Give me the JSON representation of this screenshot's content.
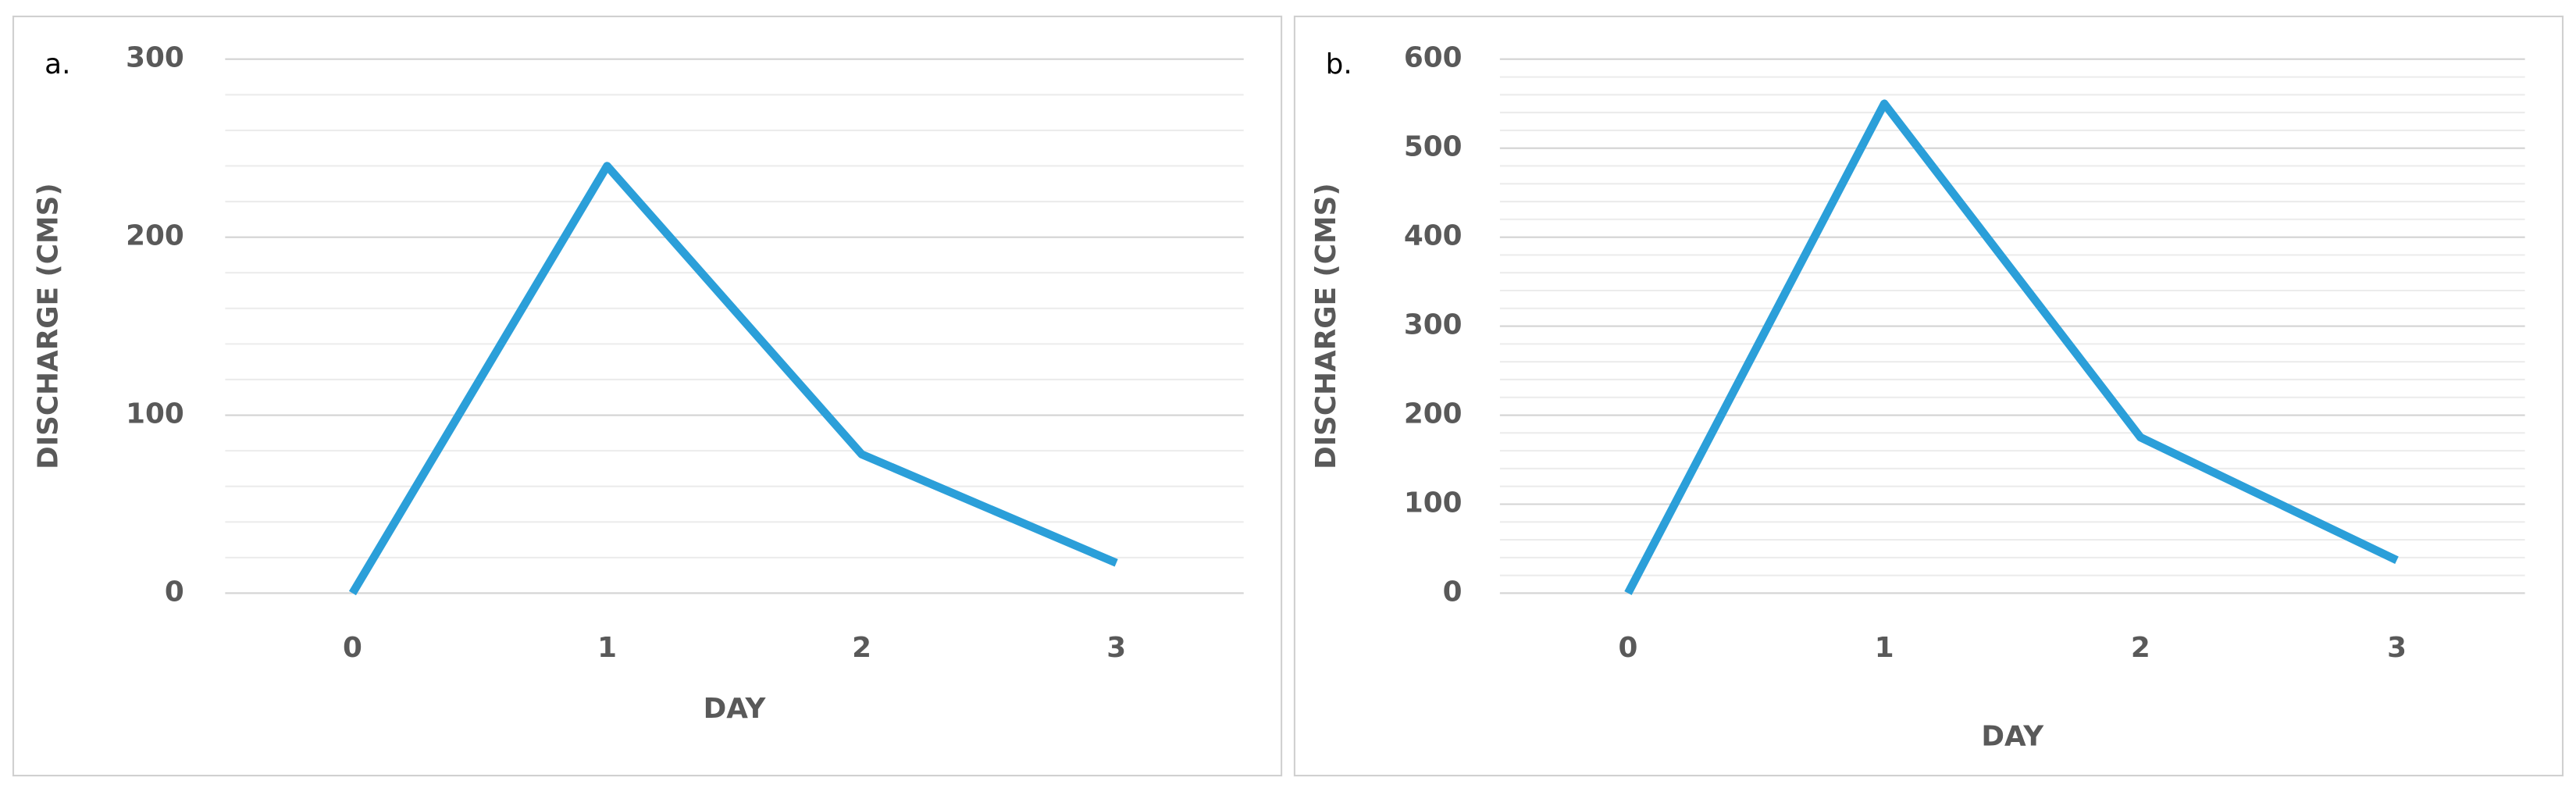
{
  "chart_data": [
    {
      "type": "line",
      "label": "a.",
      "x_label": "DAY",
      "y_label": "DISCHARGE (CMS)",
      "categories": [
        "0",
        "1",
        "2",
        "3"
      ],
      "values": [
        0,
        240,
        78,
        17
      ],
      "color": "#2b9fd9",
      "ylim": [
        0,
        300
      ],
      "yticks": [
        0,
        100,
        200,
        300
      ],
      "grid": true,
      "minor_grid_step": 20
    },
    {
      "type": "line",
      "label": "b.",
      "x_label": "DAY",
      "y_label": "DISCHARGE (CMS)",
      "categories": [
        "0",
        "1",
        "2",
        "3"
      ],
      "values": [
        0,
        550,
        175,
        37
      ],
      "color": "#2b9fd9",
      "ylim": [
        0,
        600
      ],
      "yticks": [
        0,
        100,
        200,
        300,
        400,
        500,
        600
      ],
      "grid": true,
      "minor_grid_step": 20
    }
  ]
}
